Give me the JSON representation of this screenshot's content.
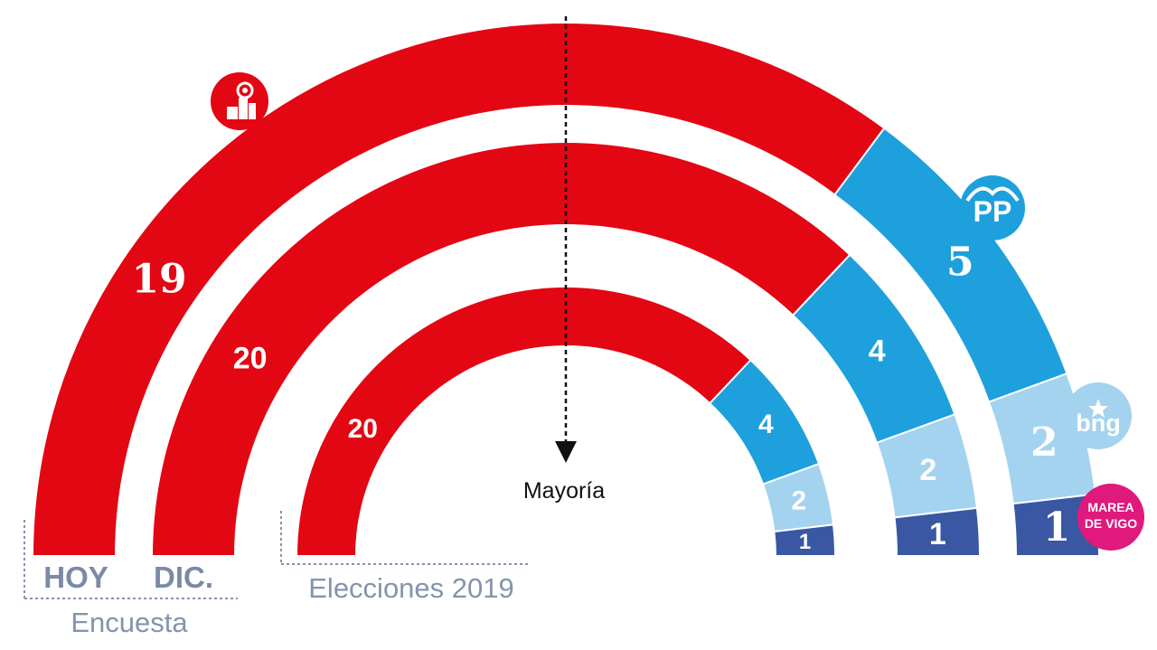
{
  "chart_data": {
    "type": "parliament-semicircle",
    "total_seats": 27,
    "majority_label": "Mayoría",
    "parties": [
      {
        "key": "psoe",
        "color": "#e30613"
      },
      {
        "key": "pp",
        "color": "#1ea0dc"
      },
      {
        "key": "bng",
        "color": "#a3d3ee"
      },
      {
        "key": "marea",
        "color": "#3957a3"
      }
    ],
    "rings": [
      {
        "name": "HOY",
        "seats": [
          19,
          5,
          2,
          1
        ],
        "labels": [
          "19",
          "5",
          "2",
          "1"
        ]
      },
      {
        "name": "DIC.",
        "seats": [
          20,
          4,
          2,
          1
        ],
        "labels": [
          "20",
          "4",
          "2",
          "1"
        ]
      },
      {
        "name": "Elecciones 2019",
        "seats": [
          20,
          4,
          2,
          1
        ],
        "labels": [
          "20",
          "4",
          "2",
          "1"
        ]
      }
    ],
    "group_labels": {
      "encuesta": "Encuesta",
      "elecciones": "Elecciones 2019"
    },
    "category_labels": {
      "hoy": "HOY",
      "dic": "DIC."
    },
    "logos": {
      "bng": "bng",
      "marea_line1": "MAREA",
      "marea_line2": "DE VIGO"
    }
  }
}
